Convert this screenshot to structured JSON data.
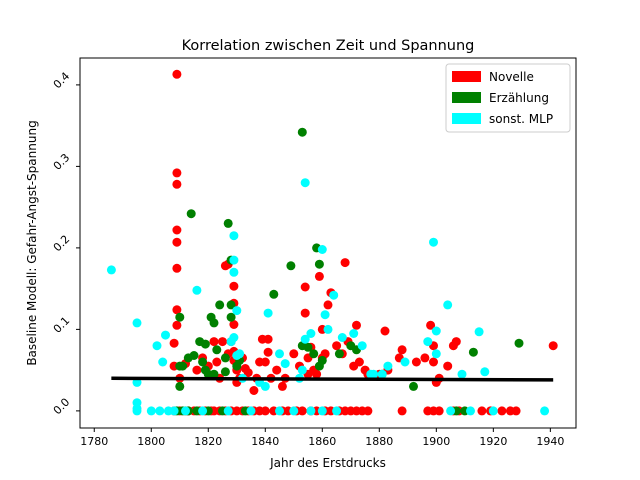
{
  "chart_data": {
    "type": "scatter",
    "title": "Korrelation zwischen Zeit und Spannung",
    "xlabel": "Jahr des Erstdrucks",
    "ylabel": "Baseline Modell: Gefahr-Angst-Spannung",
    "xlim": [
      1775,
      1949
    ],
    "ylim": [
      -0.021,
      0.433
    ],
    "xticks": [
      "1780",
      "1800",
      "1820",
      "1840",
      "1860",
      "1880",
      "1900",
      "1920",
      "1940"
    ],
    "xtick_values": [
      1780,
      1800,
      1820,
      1840,
      1860,
      1880,
      1900,
      1920,
      1940
    ],
    "yticks": [
      "0.0",
      "0.1",
      "0.2",
      "0.3",
      "0.4"
    ],
    "ytick_values": [
      0.0,
      0.1,
      0.2,
      0.3,
      0.4
    ],
    "legend_position": "top-right",
    "trendline": {
      "x": [
        1786,
        1941
      ],
      "y": [
        0.04,
        0.038
      ],
      "color": "#000000"
    },
    "series": [
      {
        "name": "Novelle",
        "color": "#ff0000",
        "points": [
          [
            1809,
            0.413
          ],
          [
            1809,
            0.292
          ],
          [
            1809,
            0.278
          ],
          [
            1809,
            0.222
          ],
          [
            1809,
            0.207
          ],
          [
            1809,
            0.175
          ],
          [
            1809,
            0.124
          ],
          [
            1809,
            0.105
          ],
          [
            1808,
            0.083
          ],
          [
            1808,
            0.055
          ],
          [
            1810,
            0.04
          ],
          [
            1808,
            0.0
          ],
          [
            1810,
            0.0
          ],
          [
            1812,
            0.0
          ],
          [
            1813,
            0.0
          ],
          [
            1815,
            0.0
          ],
          [
            1817,
            0.0
          ],
          [
            1819,
            0.0
          ],
          [
            1821,
            0.0
          ],
          [
            1822,
            0.0
          ],
          [
            1824,
            0.0
          ],
          [
            1826,
            0.0
          ],
          [
            1828,
            0.0
          ],
          [
            1830,
            0.0
          ],
          [
            1832,
            0.0
          ],
          [
            1834,
            0.0
          ],
          [
            1836,
            0.0
          ],
          [
            1838,
            0.0
          ],
          [
            1812,
            0.058
          ],
          [
            1816,
            0.05
          ],
          [
            1818,
            0.065
          ],
          [
            1820,
            0.055
          ],
          [
            1822,
            0.085
          ],
          [
            1823,
            0.06
          ],
          [
            1824,
            0.04
          ],
          [
            1825,
            0.085
          ],
          [
            1826,
            0.178
          ],
          [
            1827,
            0.18
          ],
          [
            1827,
            0.07
          ],
          [
            1828,
            0.085
          ],
          [
            1829,
            0.153
          ],
          [
            1829,
            0.132
          ],
          [
            1829,
            0.106
          ],
          [
            1829,
            0.073
          ],
          [
            1829,
            0.062
          ],
          [
            1830,
            0.05
          ],
          [
            1830,
            0.035
          ],
          [
            1831,
            0.04
          ],
          [
            1832,
            0.065
          ],
          [
            1833,
            0.052
          ],
          [
            1834,
            0.047
          ],
          [
            1836,
            0.025
          ],
          [
            1837,
            0.04
          ],
          [
            1838,
            0.06
          ],
          [
            1839,
            0.088
          ],
          [
            1840,
            0.06
          ],
          [
            1841,
            0.088
          ],
          [
            1841,
            0.072
          ],
          [
            1842,
            0.04
          ],
          [
            1844,
            0.05
          ],
          [
            1846,
            0.03
          ],
          [
            1847,
            0.04
          ],
          [
            1850,
            0.07
          ],
          [
            1852,
            0.055
          ],
          [
            1854,
            0.152
          ],
          [
            1854,
            0.12
          ],
          [
            1855,
            0.065
          ],
          [
            1855,
            0.045
          ],
          [
            1856,
            0.078
          ],
          [
            1857,
            0.05
          ],
          [
            1858,
            0.045
          ],
          [
            1859,
            0.165
          ],
          [
            1860,
            0.1
          ],
          [
            1860,
            0.065
          ],
          [
            1861,
            0.07
          ],
          [
            1862,
            0.13
          ],
          [
            1863,
            0.145
          ],
          [
            1865,
            0.08
          ],
          [
            1867,
            0.07
          ],
          [
            1868,
            0.182
          ],
          [
            1869,
            0.085
          ],
          [
            1871,
            0.055
          ],
          [
            1872,
            0.105
          ],
          [
            1873,
            0.06
          ],
          [
            1875,
            0.05
          ],
          [
            1876,
            0.045
          ],
          [
            1880,
            0.045
          ],
          [
            1882,
            0.098
          ],
          [
            1883,
            0.05
          ],
          [
            1887,
            0.065
          ],
          [
            1888,
            0.075
          ],
          [
            1893,
            0.06
          ],
          [
            1896,
            0.065
          ],
          [
            1898,
            0.105
          ],
          [
            1899,
            0.08
          ],
          [
            1899,
            0.06
          ],
          [
            1900,
            0.035
          ],
          [
            1901,
            0.04
          ],
          [
            1904,
            0.055
          ],
          [
            1906,
            0.08
          ],
          [
            1907,
            0.085
          ],
          [
            1941,
            0.08
          ],
          [
            1840,
            0.0
          ],
          [
            1843,
            0.0
          ],
          [
            1846,
            0.0
          ],
          [
            1848,
            0.0
          ],
          [
            1851,
            0.0
          ],
          [
            1853,
            0.0
          ],
          [
            1856,
            0.0
          ],
          [
            1858,
            0.0
          ],
          [
            1861,
            0.0
          ],
          [
            1863,
            0.0
          ],
          [
            1866,
            0.0
          ],
          [
            1868,
            0.0
          ],
          [
            1870,
            0.0
          ],
          [
            1872,
            0.0
          ],
          [
            1874,
            0.0
          ],
          [
            1876,
            0.0
          ],
          [
            1888,
            0.0
          ],
          [
            1897,
            0.0
          ],
          [
            1899,
            0.0
          ],
          [
            1901,
            0.0
          ],
          [
            1906,
            0.0
          ],
          [
            1908,
            0.0
          ],
          [
            1916,
            0.0
          ],
          [
            1919,
            0.0
          ],
          [
            1923,
            0.0
          ],
          [
            1926,
            0.0
          ],
          [
            1928,
            0.0
          ]
        ]
      },
      {
        "name": "Erzählung",
        "color": "#008000",
        "points": [
          [
            1853,
            0.342
          ],
          [
            1814,
            0.242
          ],
          [
            1827,
            0.23
          ],
          [
            1858,
            0.2
          ],
          [
            1859,
            0.18
          ],
          [
            1849,
            0.178
          ],
          [
            1828,
            0.185
          ],
          [
            1843,
            0.143
          ],
          [
            1824,
            0.13
          ],
          [
            1828,
            0.13
          ],
          [
            1828,
            0.115
          ],
          [
            1819,
            0.082
          ],
          [
            1821,
            0.115
          ],
          [
            1822,
            0.108
          ],
          [
            1823,
            0.075
          ],
          [
            1810,
            0.115
          ],
          [
            1810,
            0.055
          ],
          [
            1811,
            0.055
          ],
          [
            1813,
            0.065
          ],
          [
            1815,
            0.068
          ],
          [
            1817,
            0.085
          ],
          [
            1818,
            0.06
          ],
          [
            1819,
            0.05
          ],
          [
            1820,
            0.045
          ],
          [
            1822,
            0.045
          ],
          [
            1826,
            0.065
          ],
          [
            1826,
            0.048
          ],
          [
            1830,
            0.055
          ],
          [
            1831,
            0.062
          ],
          [
            1810,
            0.03
          ],
          [
            1853,
            0.08
          ],
          [
            1855,
            0.078
          ],
          [
            1857,
            0.07
          ],
          [
            1859,
            0.055
          ],
          [
            1860,
            0.062
          ],
          [
            1866,
            0.07
          ],
          [
            1870,
            0.08
          ],
          [
            1872,
            0.075
          ],
          [
            1881,
            0.045
          ],
          [
            1892,
            0.03
          ],
          [
            1913,
            0.072
          ],
          [
            1929,
            0.083
          ],
          [
            1809,
            0.0
          ],
          [
            1811,
            0.0
          ],
          [
            1813,
            0.0
          ],
          [
            1816,
            0.0
          ],
          [
            1820,
            0.0
          ],
          [
            1825,
            0.0
          ],
          [
            1833,
            0.0
          ],
          [
            1907,
            0.0
          ],
          [
            1910,
            0.0
          ]
        ]
      },
      {
        "name": "sonst. MLP",
        "color": "#00ffff",
        "points": [
          [
            1786,
            0.173
          ],
          [
            1795,
            0.108
          ],
          [
            1795,
            0.035
          ],
          [
            1795,
            0.01
          ],
          [
            1795,
            0.003
          ],
          [
            1802,
            0.08
          ],
          [
            1804,
            0.06
          ],
          [
            1805,
            0.093
          ],
          [
            1816,
            0.148
          ],
          [
            1829,
            0.215
          ],
          [
            1829,
            0.185
          ],
          [
            1829,
            0.17
          ],
          [
            1830,
            0.123
          ],
          [
            1829,
            0.09
          ],
          [
            1828,
            0.085
          ],
          [
            1830,
            0.068
          ],
          [
            1831,
            0.07
          ],
          [
            1832,
            0.04
          ],
          [
            1838,
            0.035
          ],
          [
            1840,
            0.03
          ],
          [
            1841,
            0.12
          ],
          [
            1845,
            0.07
          ],
          [
            1847,
            0.058
          ],
          [
            1852,
            0.04
          ],
          [
            1853,
            0.05
          ],
          [
            1854,
            0.28
          ],
          [
            1854,
            0.088
          ],
          [
            1856,
            0.095
          ],
          [
            1860,
            0.198
          ],
          [
            1861,
            0.118
          ],
          [
            1862,
            0.1
          ],
          [
            1864,
            0.142
          ],
          [
            1867,
            0.09
          ],
          [
            1871,
            0.095
          ],
          [
            1874,
            0.08
          ],
          [
            1877,
            0.045
          ],
          [
            1878,
            0.045
          ],
          [
            1881,
            0.045
          ],
          [
            1883,
            0.055
          ],
          [
            1889,
            0.06
          ],
          [
            1897,
            0.085
          ],
          [
            1899,
            0.207
          ],
          [
            1900,
            0.098
          ],
          [
            1900,
            0.07
          ],
          [
            1904,
            0.13
          ],
          [
            1909,
            0.045
          ],
          [
            1915,
            0.097
          ],
          [
            1917,
            0.048
          ],
          [
            1795,
            0.0
          ],
          [
            1800,
            0.0
          ],
          [
            1803,
            0.0
          ],
          [
            1806,
            0.0
          ],
          [
            1808,
            0.0
          ],
          [
            1812,
            0.0
          ],
          [
            1818,
            0.0
          ],
          [
            1827,
            0.0
          ],
          [
            1835,
            0.0
          ],
          [
            1845,
            0.0
          ],
          [
            1850,
            0.0
          ],
          [
            1856,
            0.0
          ],
          [
            1860,
            0.0
          ],
          [
            1865,
            0.0
          ],
          [
            1905,
            0.0
          ],
          [
            1912,
            0.0
          ],
          [
            1920,
            0.0
          ],
          [
            1938,
            0.0
          ]
        ]
      }
    ]
  }
}
